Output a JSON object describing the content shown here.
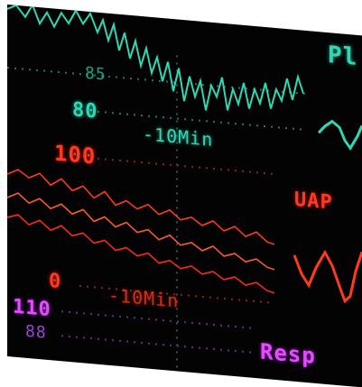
{
  "monitor": {
    "pleth": {
      "label": "Pl",
      "scale_hi": "85",
      "scale_lo": "80",
      "time_marker": "-10Min"
    },
    "uap": {
      "label": "UAP",
      "scale_hi": "100",
      "scale_lo": "0",
      "time_marker": "-10Min"
    },
    "resp": {
      "label": "Resp",
      "scale_hi": "110",
      "scale_lo": "88"
    },
    "colors": {
      "teal": "#2fd7b5",
      "red": "#ff3a1e",
      "magenta": "#e24cff",
      "background": "#020302"
    }
  }
}
